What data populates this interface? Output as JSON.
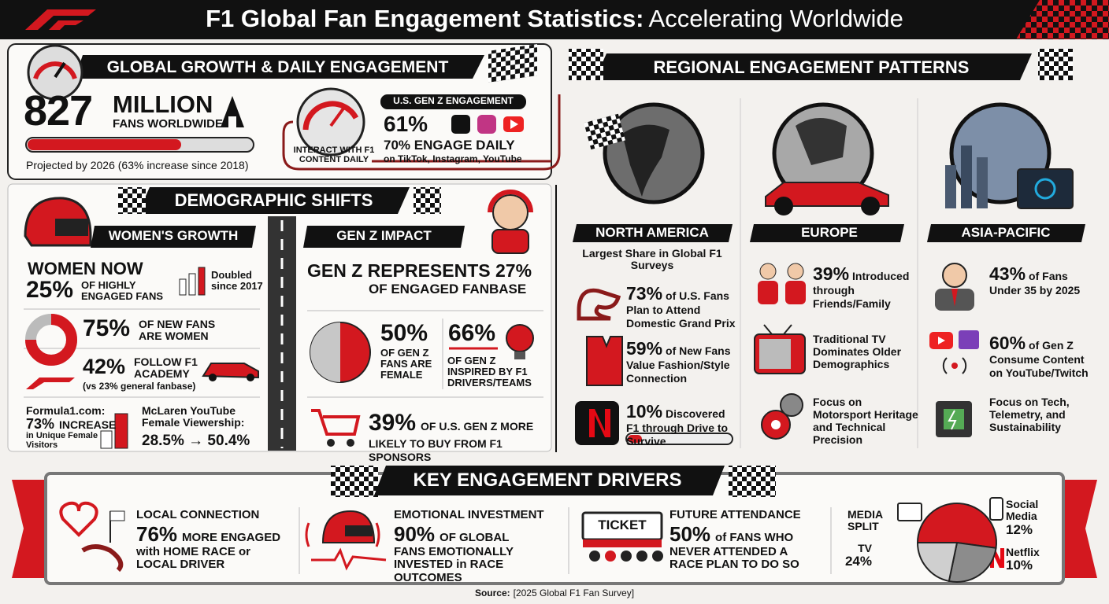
{
  "header": {
    "title_bold": "F1 Global Fan Engagement Statistics:",
    "title_light": "Accelerating Worldwide"
  },
  "global_growth": {
    "heading": "GLOBAL GROWTH & DAILY ENGAGEMENT",
    "fans_value": "827",
    "fans_unit": "MILLION",
    "fans_label": "FANS WORLDWIDE",
    "projection": "Projected by 2026 (63% increase since 2018)",
    "daily_caption": "INTERACT WITH F1 CONTENT DAILY",
    "gen_z_label": "U.S. GEN Z ENGAGEMENT",
    "gen_z_value": "61%",
    "daily_value": "70% ENGAGE DAILY",
    "daily_platforms": "on TikTok, Instagram, YouTube"
  },
  "demographics": {
    "heading": "DEMOGRAPHIC SHIFTS",
    "women": {
      "heading": "WOMEN'S GROWTH",
      "share_label": "WOMEN NOW",
      "share_value": "25%",
      "share_text": "OF HIGHLY ENGAGED FANS",
      "doubled": "Doubled since 2017",
      "new_fans_value": "75%",
      "new_fans_text": "OF NEW FANS ARE WOMEN",
      "academy_value": "42%",
      "academy_text": "FOLLOW F1 ACADEMY",
      "academy_note": "(vs 23% general fanbase)",
      "site_label": "Formula1.com:",
      "site_value": "73%",
      "site_text": "INCREASE",
      "site_note": "in Unique Female Visitors",
      "mclaren_label": "McLaren YouTube Female Viewership:",
      "mclaren_change": "28.5% → 50.4%"
    },
    "gen_z": {
      "heading": "GEN Z IMPACT",
      "share_text": "GEN Z REPRESENTS 27%",
      "share_note": "OF ENGAGED FANBASE",
      "female_value": "50%",
      "female_text": "OF GEN Z FANS ARE FEMALE",
      "inspired_value": "66%",
      "inspired_text": "OF GEN Z INSPIRED BY F1 DRIVERS/TEAMS",
      "sponsors_value": "39%",
      "sponsors_text": "OF U.S. GEN Z MORE LIKELY TO BUY FROM F1 SPONSORS"
    }
  },
  "regional": {
    "heading": "REGIONAL ENGAGEMENT PATTERNS",
    "regions": [
      {
        "name": "NORTH AMERICA",
        "intro": "Largest Share in Global F1 Surveys",
        "stats": [
          {
            "value": "73%",
            "text": "of U.S. Fans Plan to Attend Domestic Grand Prix"
          },
          {
            "value": "59%",
            "text": "of New Fans Value Fashion/Style Connection"
          },
          {
            "value": "10%",
            "text": "Discovered F1 through Drive to Survive"
          }
        ]
      },
      {
        "name": "EUROPE",
        "stats": [
          {
            "value": "39%",
            "text": "Introduced through Friends/Family"
          },
          {
            "text": "Traditional TV Dominates Older Demographics"
          },
          {
            "text": "Focus on Motorsport Heritage and Technical Precision"
          }
        ]
      },
      {
        "name": "ASIA-PACIFIC",
        "stats": [
          {
            "value": "43%",
            "text": "of Fans Under 35 by 2025"
          },
          {
            "value": "60%",
            "text": "of Gen Z Consume Content on YouTube/Twitch"
          },
          {
            "text": "Focus on Tech, Telemetry, and Sustainability"
          }
        ]
      }
    ]
  },
  "drivers": {
    "heading": "KEY ENGAGEMENT DRIVERS",
    "ticket_icon": "TICKET",
    "items": [
      {
        "title": "LOCAL CONNECTION",
        "value": "76%",
        "text": "MORE ENGAGED with HOME RACE or LOCAL DRIVER"
      },
      {
        "title": "EMOTIONAL INVESTMENT",
        "value": "90%",
        "text": "OF GLOBAL FANS EMOTIONALLY INVESTED in RACE OUTCOMES"
      },
      {
        "title": "FUTURE ATTENDANCE",
        "value": "50%",
        "text": "of FANS WHO NEVER ATTENDED A RACE PLAN TO DO SO"
      }
    ]
  },
  "chart_data": {
    "type": "pie",
    "title": "MEDIA SPLIT",
    "categories": [
      "TV",
      "Social Media",
      "Netflix"
    ],
    "values": [
      24,
      12,
      10
    ],
    "value_labels": [
      "24%",
      "12%",
      "10%"
    ],
    "colors": [
      "#d3181f",
      "#8c8c8c",
      "#cfcfcf"
    ]
  },
  "source": {
    "label": "Source:",
    "text": "[2025 Global F1 Fan Survey]"
  }
}
